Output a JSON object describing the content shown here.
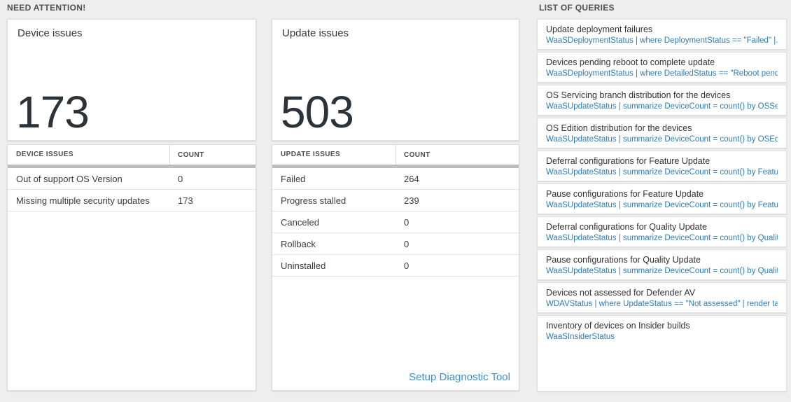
{
  "sections": {
    "need_attention": "NEED ATTENTION!",
    "list_of_queries": "LIST OF QUERIES"
  },
  "device_card": {
    "title": "Device issues",
    "value": "173"
  },
  "device_table": {
    "headers": [
      "DEVICE ISSUES",
      "COUNT"
    ],
    "rows": [
      {
        "label": "Out of support OS Version",
        "count": "0"
      },
      {
        "label": "Missing multiple security updates",
        "count": "173"
      }
    ]
  },
  "update_card": {
    "title": "Update issues",
    "value": "503"
  },
  "update_table": {
    "headers": [
      "UPDATE ISSUES",
      "COUNT"
    ],
    "rows": [
      {
        "label": "Failed",
        "count": "264"
      },
      {
        "label": "Progress stalled",
        "count": "239"
      },
      {
        "label": "Canceled",
        "count": "0"
      },
      {
        "label": "Rollback",
        "count": "0"
      },
      {
        "label": "Uninstalled",
        "count": "0"
      }
    ],
    "footer_link": "Setup Diagnostic Tool"
  },
  "queries": [
    {
      "title": "Update deployment failures",
      "query": "WaaSDeploymentStatus | where DeploymentStatus == \"Failed\" |..."
    },
    {
      "title": "Devices pending reboot to complete update",
      "query": "WaaSDeploymentStatus | where DetailedStatus == \"Reboot pend..."
    },
    {
      "title": "OS Servicing branch distribution for the devices",
      "query": "WaaSUpdateStatus | summarize DeviceCount = count() by OSSer..."
    },
    {
      "title": "OS Edition distribution for the devices",
      "query": "WaaSUpdateStatus | summarize DeviceCount = count() by OSEdit..."
    },
    {
      "title": "Deferral configurations for Feature Update",
      "query": "WaaSUpdateStatus | summarize DeviceCount = count() by Featur..."
    },
    {
      "title": "Pause configurations for Feature Update",
      "query": "WaaSUpdateStatus | summarize DeviceCount = count() by Featur..."
    },
    {
      "title": "Deferral configurations for Quality Update",
      "query": "WaaSUpdateStatus | summarize DeviceCount = count() by Qualit..."
    },
    {
      "title": "Pause configurations for Quality Update",
      "query": "WaaSUpdateStatus | summarize DeviceCount = count() by Qualit..."
    },
    {
      "title": "Devices not assessed for Defender AV",
      "query": "WDAVStatus | where UpdateStatus == \"Not assessed\" | render ta..."
    },
    {
      "title": "Inventory of devices on Insider builds",
      "query": "WaaSInsiderStatus"
    }
  ],
  "colors": {
    "page_bg": "#eeeeee",
    "card_bg": "#ffffff",
    "query_link_blue": "#2e7cb8",
    "footer_link_blue": "#3a90d2",
    "header_divider_bar": "#bdbdbd",
    "big_number_text": "#2b3238"
  }
}
